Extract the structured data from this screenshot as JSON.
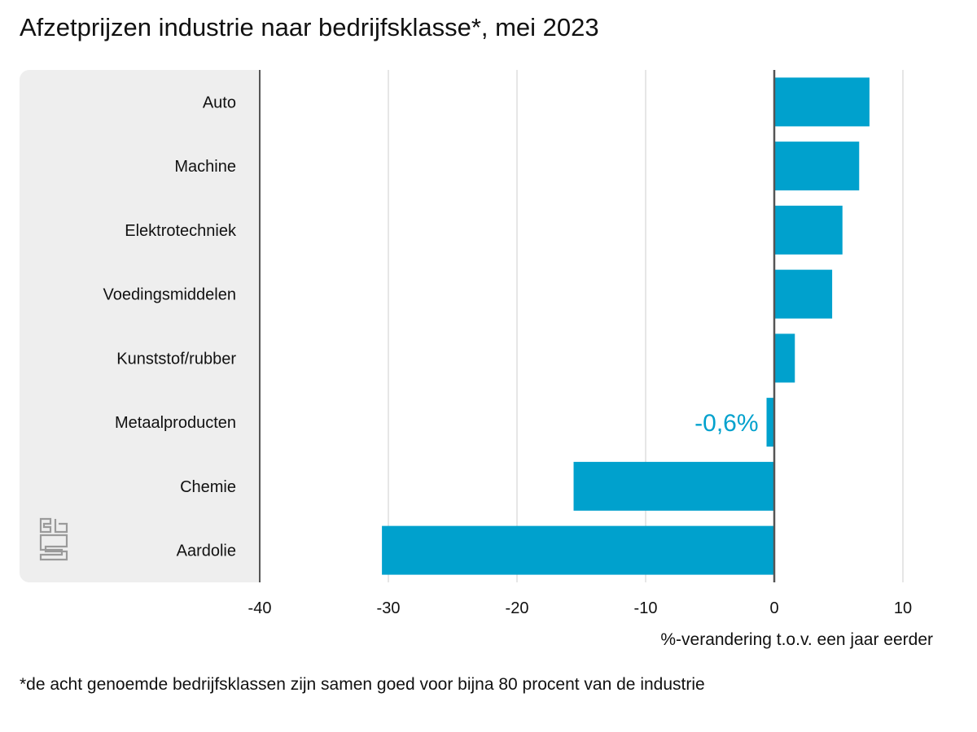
{
  "chart_data": {
    "type": "bar",
    "orientation": "horizontal",
    "title": "Afzetprijzen industrie naar bedrijfsklasse*, mei 2023",
    "xlabel": "%-verandering t.o.v. een jaar eerder",
    "ylabel": "",
    "categories": [
      "Auto",
      "Machine",
      "Elektrotechniek",
      "Voedingsmiddelen",
      "Kunststof/rubber",
      "Metaalproducten",
      "Chemie",
      "Aardolie"
    ],
    "values": [
      7.4,
      6.6,
      5.3,
      4.5,
      1.6,
      -0.6,
      -15.6,
      -30.5
    ],
    "xlim": [
      -40,
      10
    ],
    "xticks": [
      -40,
      -30,
      -20,
      -10,
      0,
      10
    ],
    "grid": true,
    "annotations": [
      {
        "category": "Metaalproducten",
        "text": "-0,6%"
      }
    ],
    "footnote": "*de acht genoemde bedrijfsklassen zijn samen goed voor bijna 80 procent van de industrie"
  },
  "colors": {
    "bar": "#00a1cd",
    "panel": "#eeeeee",
    "grid": "#cccccc",
    "axis": "#555555",
    "annotation": "#00a1cd"
  },
  "logo": {
    "icon": "cbs-logo-icon"
  }
}
